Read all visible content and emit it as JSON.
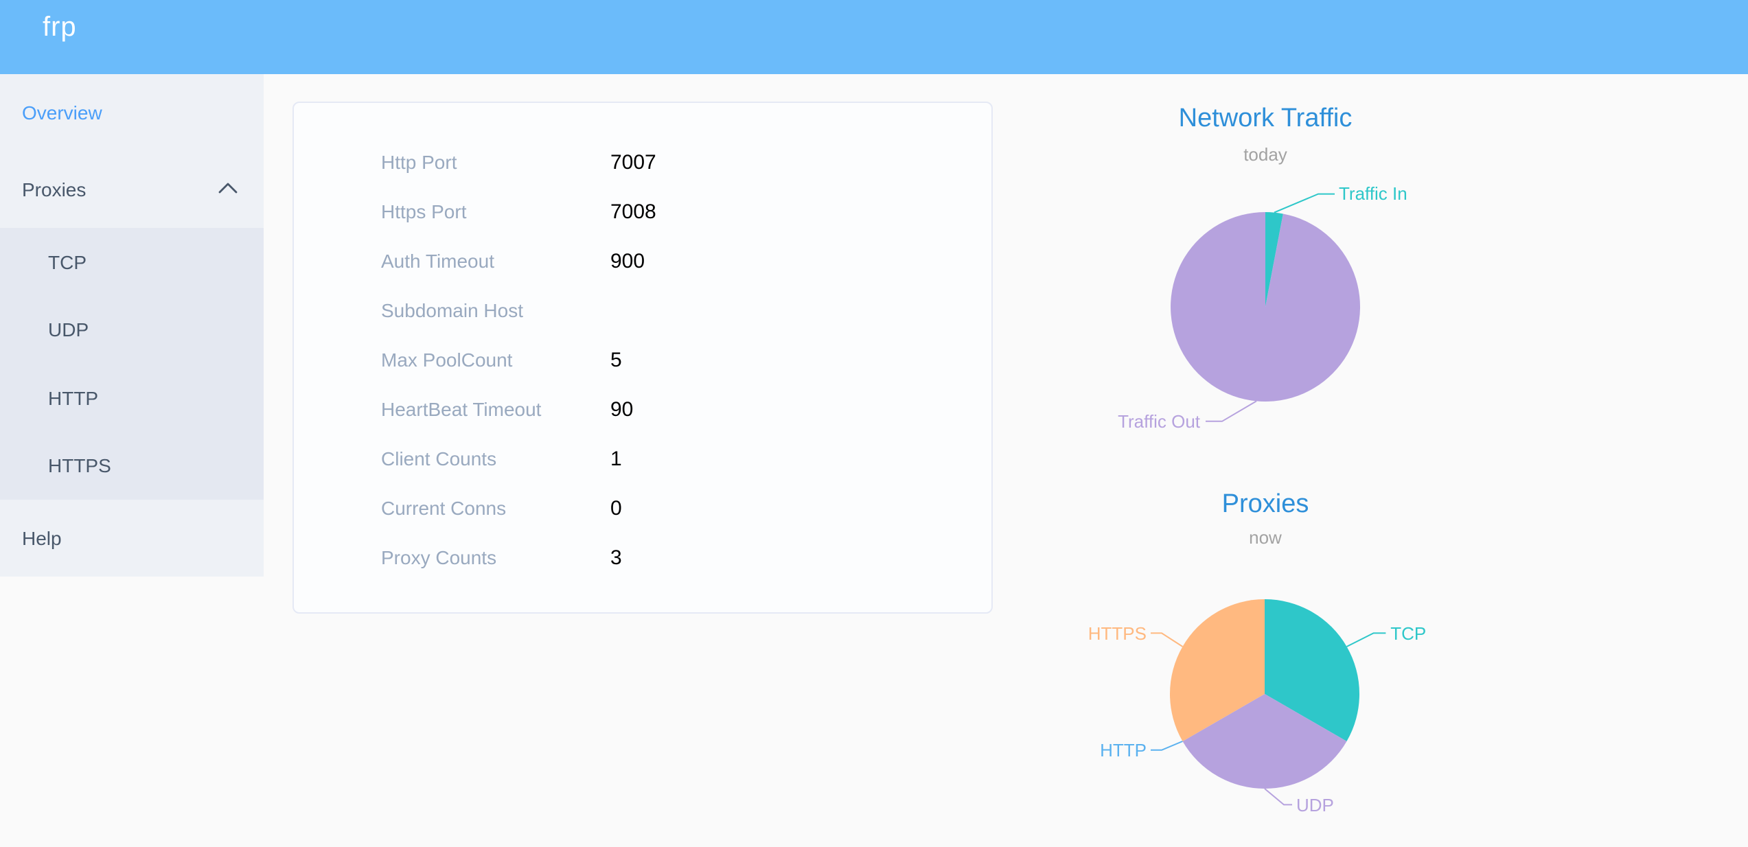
{
  "header": {
    "logo_text": "frp",
    "background": "#6bbbfa"
  },
  "sidebar": {
    "overview": "Overview",
    "proxies": "Proxies",
    "submenu": [
      "TCP",
      "UDP",
      "HTTP",
      "HTTPS"
    ],
    "help": "Help",
    "active_item": "Overview",
    "active_color": "#4a9ef9"
  },
  "server_info": {
    "rows": [
      {
        "label": "Http Port",
        "value": "7007"
      },
      {
        "label": "Https Port",
        "value": "7008"
      },
      {
        "label": "Auth Timeout",
        "value": "900"
      },
      {
        "label": "Subdomain Host",
        "value": ""
      },
      {
        "label": "Max PoolCount",
        "value": "5"
      },
      {
        "label": "HeartBeat Timeout",
        "value": "90"
      },
      {
        "label": "Client Counts",
        "value": "1"
      },
      {
        "label": "Current Conns",
        "value": "0"
      },
      {
        "label": "Proxy Counts",
        "value": "3"
      }
    ]
  },
  "chart_data": [
    {
      "type": "pie",
      "title": "Network Traffic",
      "subtitle": "today",
      "values_estimated_percent": true,
      "series": [
        {
          "name": "Traffic In",
          "value": 3,
          "color": "#2ec7c9"
        },
        {
          "name": "Traffic Out",
          "value": 97,
          "color": "#b6a2de"
        }
      ],
      "legend_position": "callout-labels",
      "start_angle_deg": 0,
      "direction": "clockwise-from-top"
    },
    {
      "type": "pie",
      "title": "Proxies",
      "subtitle": "now",
      "series": [
        {
          "name": "TCP",
          "value": 1,
          "color": "#2ec7c9"
        },
        {
          "name": "UDP",
          "value": 1,
          "color": "#b6a2de"
        },
        {
          "name": "HTTP",
          "value": 0,
          "color": "#5ab1ef"
        },
        {
          "name": "HTTPS",
          "value": 1,
          "color": "#ffb980"
        }
      ],
      "legend_position": "callout-labels",
      "start_angle_deg": 0,
      "direction": "clockwise-from-top"
    }
  ],
  "theme": {
    "page_bg": "#fafafa",
    "sidebar_bg": "#eef1f6",
    "submenu_bg": "#e4e8f1",
    "menu_text": "#48576a",
    "card_border": "#e5e9f5",
    "form_label": "#99a9bf",
    "chart_title_blue": "#2e8fd9"
  }
}
